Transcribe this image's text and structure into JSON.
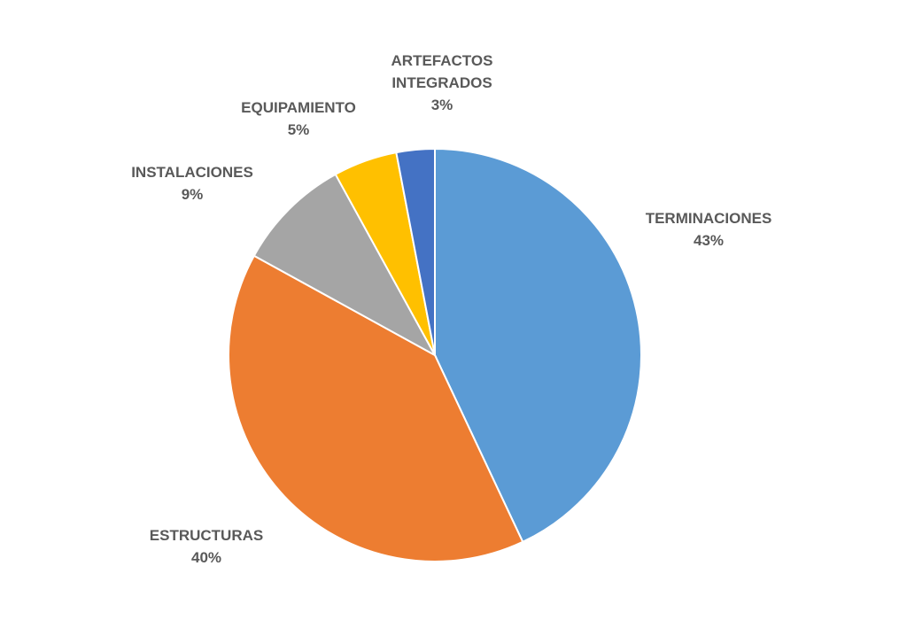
{
  "chart_data": {
    "type": "pie",
    "title": "",
    "start_angle_deg": 0,
    "direction": "clockwise",
    "legend": "none",
    "slices": [
      {
        "label_lines": [
          "TERMINACIONES"
        ],
        "value": 43,
        "value_label": "43%",
        "color": "#5B9BD5"
      },
      {
        "label_lines": [
          "ESTRUCTURAS"
        ],
        "value": 40,
        "value_label": "40%",
        "color": "#ED7D31"
      },
      {
        "label_lines": [
          "INSTALACIONES"
        ],
        "value": 9,
        "value_label": "9%",
        "color": "#A5A5A5"
      },
      {
        "label_lines": [
          "EQUIPAMIENTO"
        ],
        "value": 5,
        "value_label": "5%",
        "color": "#FFC000"
      },
      {
        "label_lines": [
          "ARTEFACTOS",
          "INTEGRADOS"
        ],
        "value": 3,
        "value_label": "3%",
        "color": "#4472C4"
      }
    ]
  }
}
